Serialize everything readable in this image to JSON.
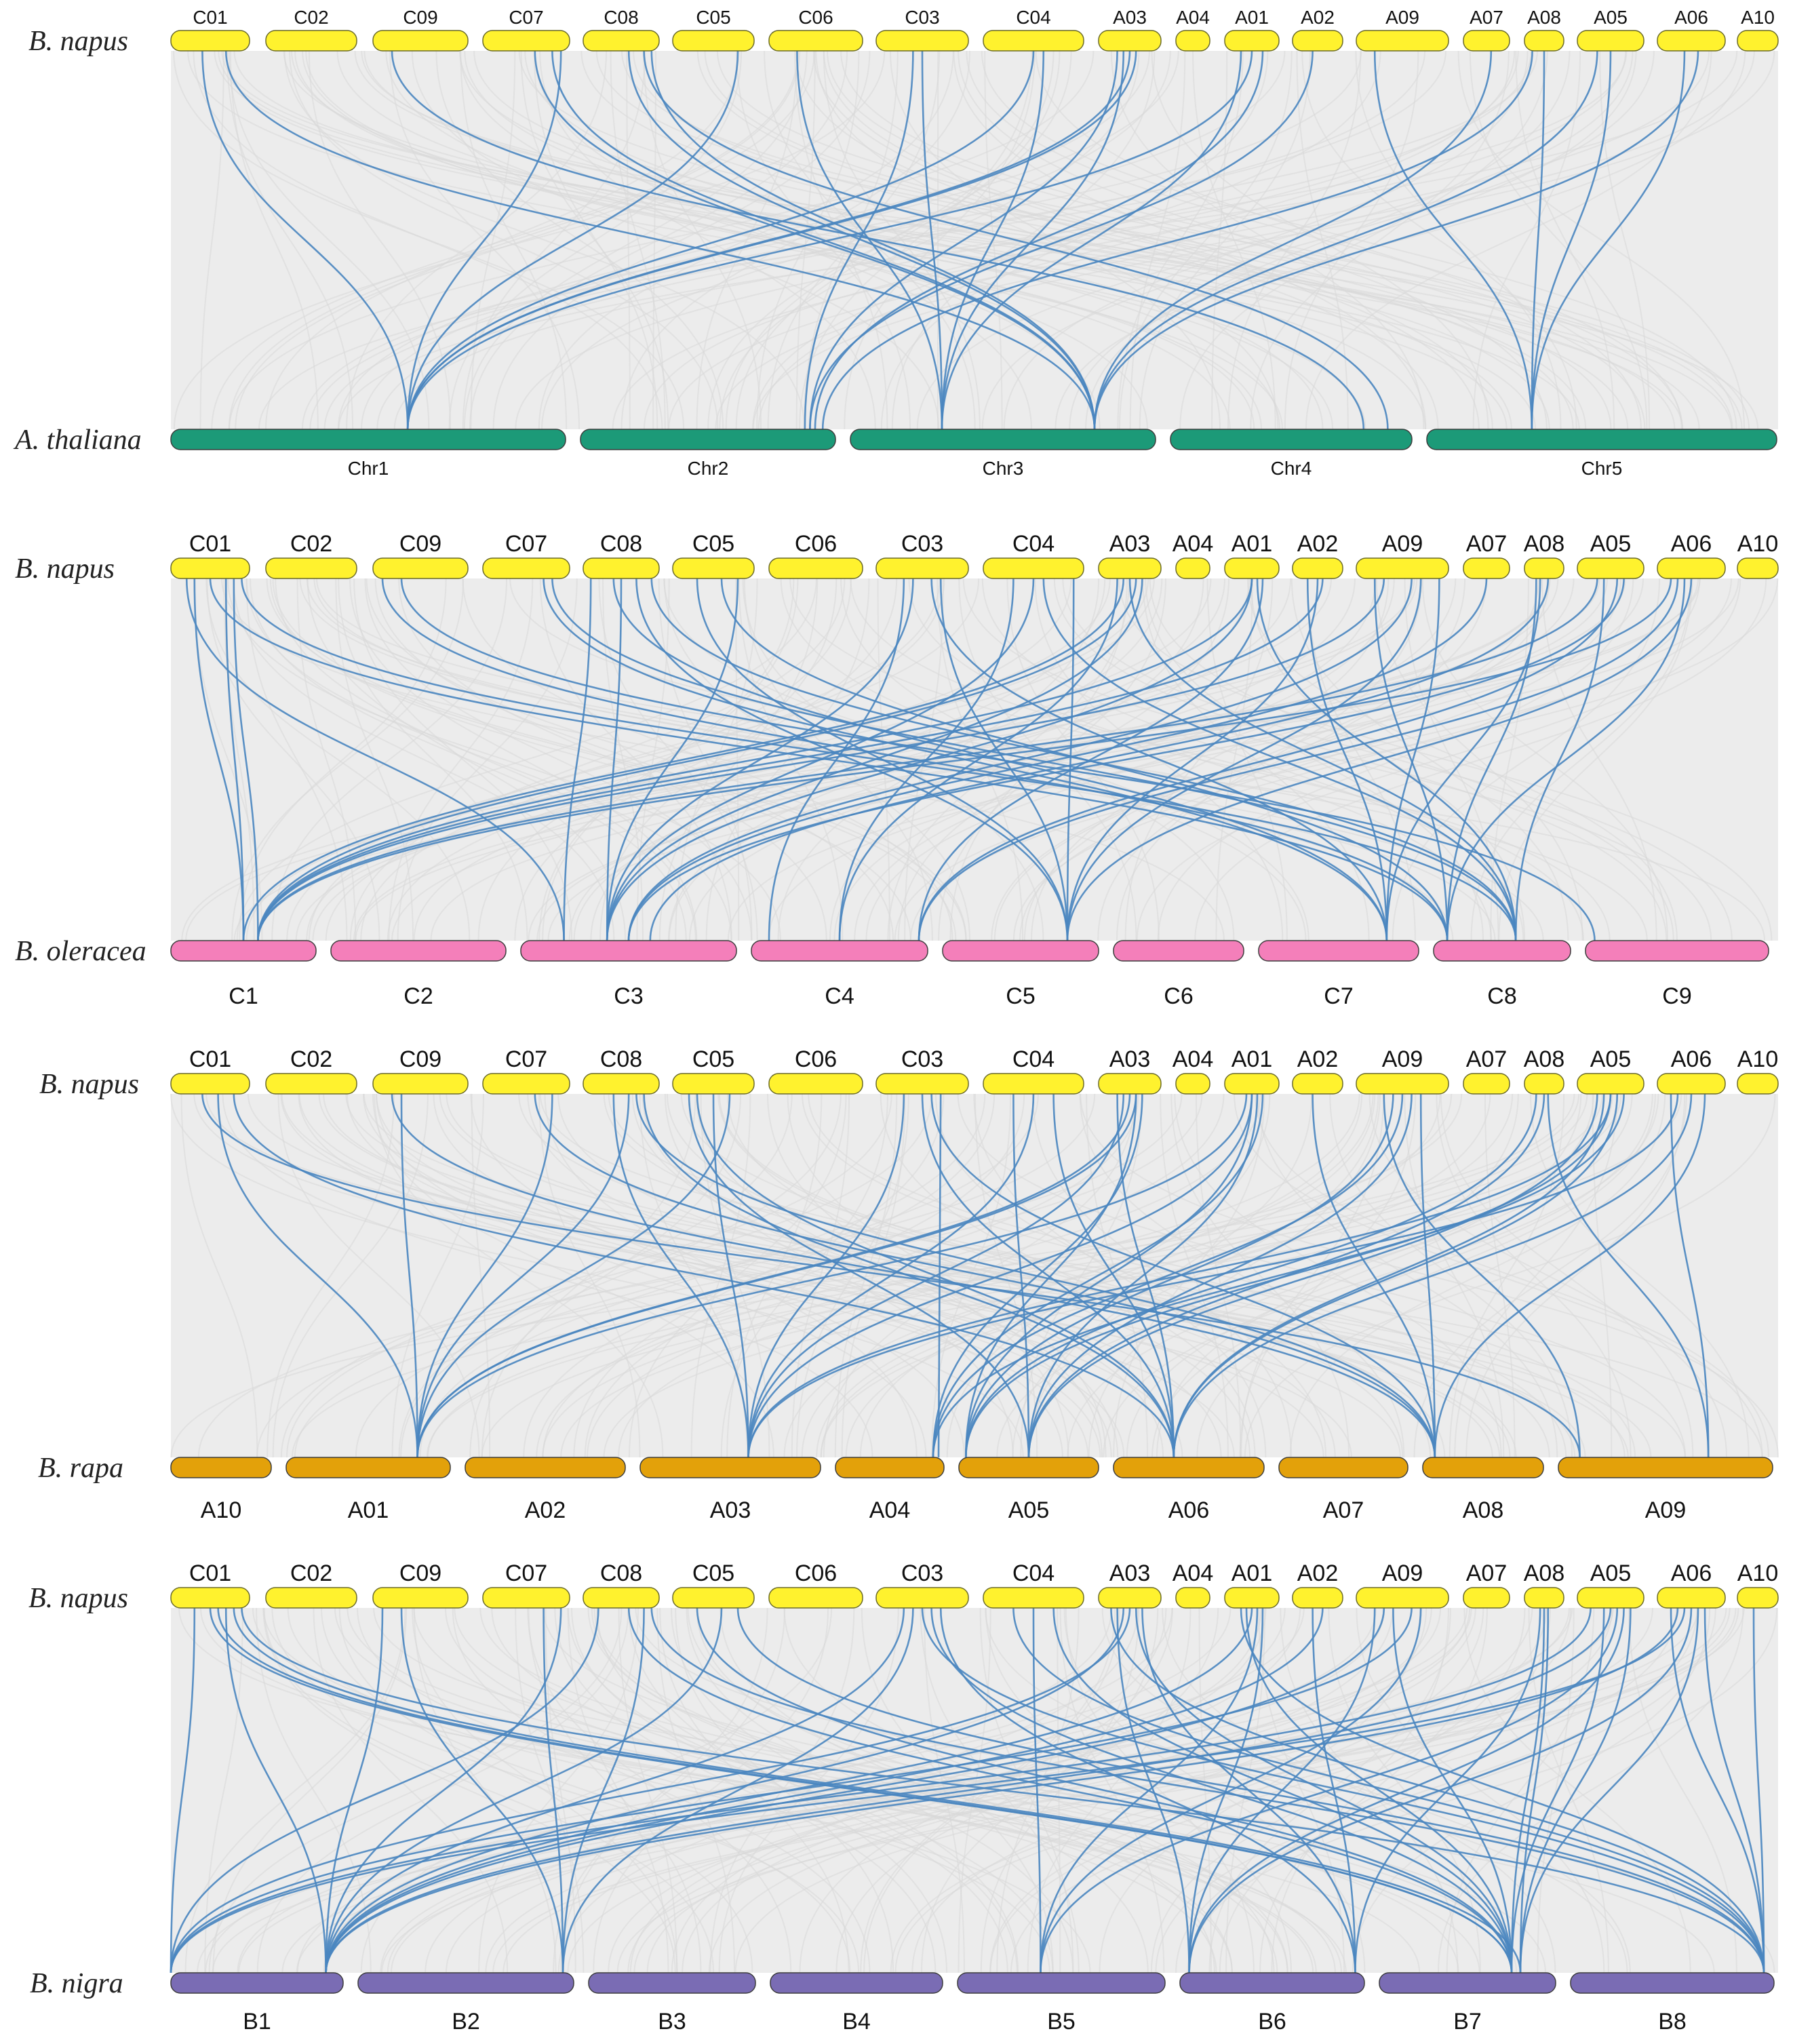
{
  "chart_data": [
    {
      "type": "synteny",
      "top_species": "B. napus",
      "bottom_species": "A. thaliana",
      "top_chromosomes": [
        "C01",
        "C02",
        "C09",
        "C07",
        "C08",
        "C05",
        "C06",
        "C03",
        "C04",
        "A03",
        "A04",
        "A01",
        "A02",
        "A09",
        "A07",
        "A08",
        "A05",
        "A06",
        "A10"
      ],
      "bottom_chromosomes": [
        "Chr1",
        "Chr2",
        "Chr3",
        "Chr4",
        "Chr5"
      ],
      "top_color": "#fff22e",
      "bottom_color": "#1c9a78"
    },
    {
      "type": "synteny",
      "top_species": "B. napus",
      "bottom_species": "B. oleracea",
      "top_chromosomes": [
        "C01",
        "C02",
        "C09",
        "C07",
        "C08",
        "C05",
        "C06",
        "C03",
        "C04",
        "A03",
        "A04",
        "A01",
        "A02",
        "A09",
        "A07",
        "A08",
        "A05",
        "A06",
        "A10"
      ],
      "bottom_chromosomes": [
        "C1",
        "C2",
        "C3",
        "C4",
        "C5",
        "C6",
        "C7",
        "C8",
        "C9"
      ],
      "top_color": "#fff22e",
      "bottom_color": "#f47fba"
    },
    {
      "type": "synteny",
      "top_species": "B. napus",
      "bottom_species": "B. rapa",
      "top_chromosomes": [
        "C01",
        "C02",
        "C09",
        "C07",
        "C08",
        "C05",
        "C06",
        "C03",
        "C04",
        "A03",
        "A04",
        "A01",
        "A02",
        "A09",
        "A07",
        "A08",
        "A05",
        "A06",
        "A10"
      ],
      "bottom_chromosomes": [
        "A10",
        "A01",
        "A02",
        "A03",
        "A04",
        "A05",
        "A06",
        "A07",
        "A08",
        "A09"
      ],
      "top_color": "#fff22e",
      "bottom_color": "#e3a10a"
    },
    {
      "type": "synteny",
      "top_species": "B. napus",
      "bottom_species": "B. nigra",
      "top_chromosomes": [
        "C01",
        "C02",
        "C09",
        "C07",
        "C08",
        "C05",
        "C06",
        "C03",
        "C04",
        "A03",
        "A04",
        "A01",
        "A02",
        "A09",
        "A07",
        "A08",
        "A05",
        "A06",
        "A10"
      ],
      "bottom_chromosomes": [
        "B1",
        "B2",
        "B3",
        "B4",
        "B5",
        "B6",
        "B7",
        "B8"
      ],
      "top_color": "#fff22e",
      "bottom_color": "#7a6cb4"
    }
  ]
}
